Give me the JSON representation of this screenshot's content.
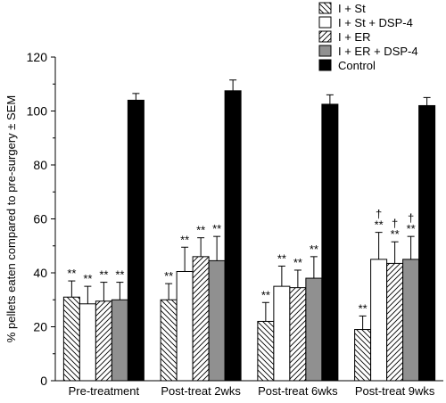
{
  "chart_data": {
    "type": "bar",
    "title": "",
    "xlabel": "",
    "ylabel": "% pellets eaten compared to pre-surgery ± SEM",
    "ylim": [
      0,
      120
    ],
    "yticks": [
      0,
      20,
      40,
      60,
      80,
      100,
      120
    ],
    "grid": false,
    "legend_position": "top-right",
    "categories": [
      "Pre-treatment",
      "Post-treat 2wks",
      "Post-treat 6wks",
      "Post-treat 9wks"
    ],
    "series": [
      {
        "name": "I + St",
        "pattern": "backslash-hatch",
        "values": [
          31,
          30,
          22,
          19
        ],
        "errors": [
          6,
          6,
          7,
          5
        ],
        "labels": [
          "**",
          "**",
          "**",
          "**"
        ]
      },
      {
        "name": "I + St + DSP-4",
        "pattern": "white",
        "values": [
          28.5,
          40.5,
          35,
          45
        ],
        "errors": [
          6.5,
          9,
          7.5,
          10
        ],
        "labels": [
          "**",
          "**",
          "**",
          "†\n**"
        ]
      },
      {
        "name": "I + ER",
        "pattern": "slash-hatch",
        "values": [
          29.5,
          46,
          34.5,
          43.5
        ],
        "errors": [
          7,
          7,
          6.5,
          8
        ],
        "labels": [
          "**",
          "**",
          "**",
          "†\n**"
        ]
      },
      {
        "name": "I + ER + DSP-4",
        "pattern": "gray",
        "values": [
          30,
          44.5,
          38,
          45
        ],
        "errors": [
          6.5,
          9,
          8,
          8.5
        ],
        "labels": [
          "**",
          "**",
          "**",
          "†\n**"
        ]
      },
      {
        "name": "Control",
        "pattern": "black",
        "values": [
          104,
          107.5,
          102.5,
          102
        ],
        "errors": [
          2.5,
          4,
          3.5,
          3
        ],
        "labels": [
          "",
          "",
          "",
          ""
        ]
      }
    ],
    "colors": {
      "gray": "#909090",
      "black": "#000000",
      "white": "#ffffff"
    }
  }
}
